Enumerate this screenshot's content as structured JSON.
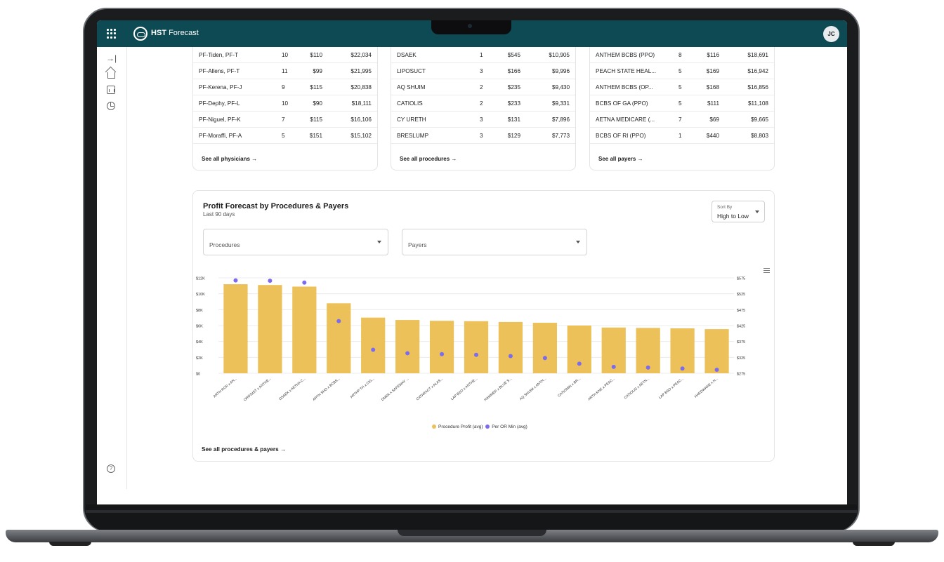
{
  "header": {
    "brand_bold": "HST",
    "brand_rest": "Forecast",
    "user_initials": "JC"
  },
  "physicians": {
    "rows": [
      {
        "name": "PF-Tiden, PF-T",
        "count": "10",
        "avg": "$110",
        "total": "$22,034"
      },
      {
        "name": "PF-Allens, PF-T",
        "count": "11",
        "avg": "$99",
        "total": "$21,995"
      },
      {
        "name": "PF-Kerena, PF-J",
        "count": "9",
        "avg": "$115",
        "total": "$20,838"
      },
      {
        "name": "PF-Dephy, PF-L",
        "count": "10",
        "avg": "$90",
        "total": "$18,111"
      },
      {
        "name": "PF-Niguel, PF-K",
        "count": "7",
        "avg": "$115",
        "total": "$16,106"
      },
      {
        "name": "PF-Moraffi, PF-A",
        "count": "5",
        "avg": "$151",
        "total": "$15,102"
      }
    ],
    "see_all": "See all physicians"
  },
  "procedures": {
    "rows": [
      {
        "name": "DSAEK",
        "count": "1",
        "avg": "$545",
        "total": "$10,905"
      },
      {
        "name": "LIPOSUCT",
        "count": "3",
        "avg": "$166",
        "total": "$9,996"
      },
      {
        "name": "AQ SHUIM",
        "count": "2",
        "avg": "$235",
        "total": "$9,430"
      },
      {
        "name": "CATIOLIS",
        "count": "2",
        "avg": "$233",
        "total": "$9,331"
      },
      {
        "name": "CY URETH",
        "count": "3",
        "avg": "$131",
        "total": "$7,896"
      },
      {
        "name": "BRESLUMP",
        "count": "3",
        "avg": "$129",
        "total": "$7,773"
      }
    ],
    "see_all": "See all procedures"
  },
  "payers": {
    "rows": [
      {
        "name": "ANTHEM BCBS (PPO)",
        "count": "8",
        "avg": "$116",
        "total": "$18,691"
      },
      {
        "name": "PEACH STATE HEAL...",
        "count": "5",
        "avg": "$169",
        "total": "$16,942"
      },
      {
        "name": "ANTHEM BCBS (OP...",
        "count": "5",
        "avg": "$168",
        "total": "$16,856"
      },
      {
        "name": "BCBS OF GA (PPO)",
        "count": "5",
        "avg": "$111",
        "total": "$11,108"
      },
      {
        "name": "AETNA MEDICARE (...",
        "count": "7",
        "avg": "$69",
        "total": "$9,665"
      },
      {
        "name": "BCBS OF RI (PPO)",
        "count": "1",
        "avg": "$440",
        "total": "$8,803"
      }
    ],
    "see_all": "See all payers"
  },
  "forecast": {
    "title": "Profit Forecast by Procedures & Payers",
    "subtitle": "Last 90 days",
    "sort_label": "Sort By",
    "sort_value": "High to Low",
    "procedures_placeholder": "Procedures",
    "payers_placeholder": "Payers",
    "see_all": "See all procedures & payers"
  },
  "chart_data": {
    "type": "bar",
    "categories": [
      "ARTH RCR x AN...",
      "ORIFDIST x ANTHE...",
      "DSAEK x AETNA C...",
      "ARTH SHO x BCBS...",
      "ARTHP TH x CIG...",
      "DMEK x SAFEWAY ...",
      "CATARACT x ALAS...",
      "LAP BSO x ANTHE...",
      "HAMMER x BLUE S...",
      "AQ SHUIM x ANTH...",
      "CATIOMIN x BR...",
      "ARTH KNE x PEAC...",
      "CATIOLIS x AETN...",
      "LAP BSO x PEAC...",
      "HARDWARE x H..."
    ],
    "series": [
      {
        "name": "Procedure Profit (avg)",
        "color": "#ecc15a",
        "axis": "left",
        "values": [
          11200,
          11100,
          10900,
          8800,
          7000,
          6700,
          6600,
          6550,
          6450,
          6350,
          6000,
          5750,
          5700,
          5650,
          5550
        ]
      },
      {
        "name": "Per OR Min (avg)",
        "color": "#7b6cef",
        "axis": "right",
        "values": [
          567,
          566,
          560,
          439,
          349,
          338,
          335,
          333,
          329,
          323,
          305,
          295,
          293,
          290,
          286
        ]
      }
    ],
    "left_ticks": [
      "$0",
      "$2K",
      "$4K",
      "$6K",
      "$8K",
      "$10K",
      "$12K"
    ],
    "right_ticks": [
      "$275",
      "$325",
      "$375",
      "$425",
      "$475",
      "$525",
      "$575"
    ],
    "ylim_left": [
      0,
      12000
    ],
    "ylim_right": [
      275,
      575
    ]
  }
}
